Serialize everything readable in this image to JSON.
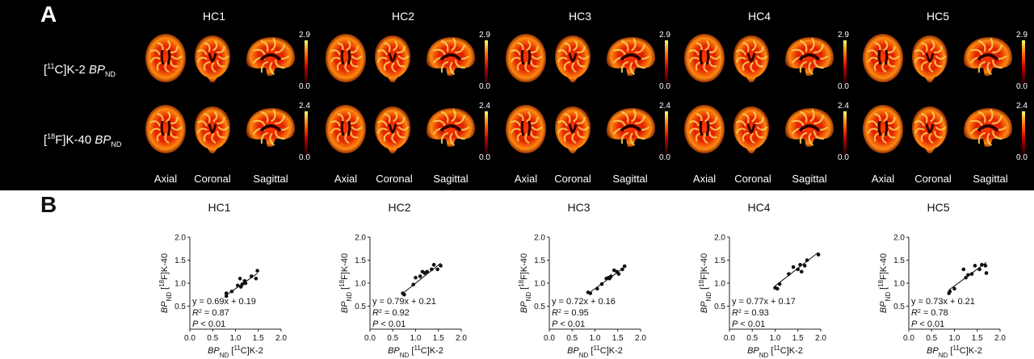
{
  "panel_a": {
    "letter": "A",
    "subjects": [
      "HC1",
      "HC2",
      "HC3",
      "HC4",
      "HC5"
    ],
    "rows": [
      {
        "tracer_sup": "11",
        "tracer_rest": "C]K-2 ",
        "bp": "BP",
        "bp_sub": "ND",
        "cmax": "2.9",
        "cmin": "0.0"
      },
      {
        "tracer_sup": "18",
        "tracer_rest": "F]K-40 ",
        "bp": "BP",
        "bp_sub": "ND",
        "cmax": "2.4",
        "cmin": "0.0"
      }
    ],
    "views": [
      "Axial",
      "Coronal",
      "Sagittal"
    ],
    "colormap": [
      "#000000",
      "#5a0000",
      "#b50000",
      "#ff3b00",
      "#ff9a1a",
      "#ffff70"
    ]
  },
  "panel_b": {
    "letter": "B",
    "xlabel": {
      "bp": "BP",
      "sub": "ND",
      "sup": "11",
      "rest": "C]K-2"
    },
    "ylabel": {
      "bp": "BP",
      "sub": "ND",
      "sup": "18",
      "rest": "F]K-40"
    }
  },
  "chart_data": [
    {
      "type": "scatter",
      "title": "HC1",
      "xlim": [
        0,
        2.0
      ],
      "ylim": [
        0,
        2.0
      ],
      "xticks": [
        "0.0",
        "0.5",
        "1.0",
        "1.5",
        "2.0"
      ],
      "yticks": [
        "0.5",
        "1.0",
        "1.5",
        "2.0"
      ],
      "x": [
        0.8,
        0.8,
        0.92,
        1.05,
        1.1,
        1.12,
        1.15,
        1.2,
        1.22,
        1.35,
        1.45,
        1.48
      ],
      "y": [
        0.72,
        0.78,
        0.82,
        0.95,
        1.1,
        0.92,
        0.98,
        1.05,
        1.0,
        1.15,
        1.1,
        1.27
      ],
      "fit": {
        "slope": 0.69,
        "intercept": 0.19
      },
      "eq": "y = 0.69x + 0.19",
      "r2": "= 0.87",
      "p": "< 0.01"
    },
    {
      "type": "scatter",
      "title": "HC2",
      "xlim": [
        0,
        2.0
      ],
      "ylim": [
        0,
        2.0
      ],
      "xticks": [
        "0.0",
        "0.5",
        "1.0",
        "1.5",
        "2.0"
      ],
      "yticks": [
        "0.5",
        "1.0",
        "1.5",
        "2.0"
      ],
      "x": [
        0.72,
        0.75,
        0.95,
        1.0,
        1.1,
        1.15,
        1.2,
        1.25,
        1.35,
        1.4,
        1.48,
        1.55
      ],
      "y": [
        0.78,
        0.75,
        0.97,
        1.12,
        1.15,
        1.25,
        1.22,
        1.25,
        1.3,
        1.4,
        1.3,
        1.38
      ],
      "fit": {
        "slope": 0.79,
        "intercept": 0.21
      },
      "eq": "y = 0.79x + 0.21",
      "r2": "= 0.92",
      "p": "< 0.01"
    },
    {
      "type": "scatter",
      "title": "HC3",
      "xlim": [
        0,
        2.0
      ],
      "ylim": [
        0,
        2.0
      ],
      "xticks": [
        "0.0",
        "0.5",
        "1.0",
        "1.5",
        "2.0"
      ],
      "yticks": [
        "0.5",
        "1.0",
        "1.5",
        "2.0"
      ],
      "x": [
        0.85,
        0.9,
        1.05,
        1.15,
        1.25,
        1.3,
        1.32,
        1.35,
        1.42,
        1.48,
        1.52,
        1.6,
        1.65
      ],
      "y": [
        0.8,
        0.78,
        0.88,
        0.98,
        1.1,
        1.12,
        1.1,
        1.15,
        1.28,
        1.25,
        1.2,
        1.3,
        1.37
      ],
      "fit": {
        "slope": 0.72,
        "intercept": 0.16
      },
      "eq": "y = 0.72x + 0.16",
      "r2": "= 0.95",
      "p": "< 0.01"
    },
    {
      "type": "scatter",
      "title": "HC4",
      "xlim": [
        0,
        2.0
      ],
      "ylim": [
        0,
        2.0
      ],
      "xticks": [
        "0.0",
        "0.5",
        "1.0",
        "1.5",
        "2.0"
      ],
      "yticks": [
        "0.5",
        "1.0",
        "1.5",
        "2.0"
      ],
      "x": [
        1.0,
        1.05,
        1.1,
        1.3,
        1.4,
        1.5,
        1.55,
        1.58,
        1.65,
        1.7,
        1.95
      ],
      "y": [
        0.9,
        0.88,
        0.98,
        1.2,
        1.35,
        1.3,
        1.4,
        1.25,
        1.38,
        1.5,
        1.62
      ],
      "fit": {
        "slope": 0.77,
        "intercept": 0.17
      },
      "eq": "y = 0.77x + 0.17",
      "r2": "= 0.93",
      "p": "< 0.01"
    },
    {
      "type": "scatter",
      "title": "HC5",
      "xlim": [
        0,
        2.0
      ],
      "ylim": [
        0,
        2.0
      ],
      "xticks": [
        "0.0",
        "0.5",
        "1.0",
        "1.5",
        "2.0"
      ],
      "yticks": [
        "0.5",
        "1.0",
        "1.5",
        "2.0"
      ],
      "x": [
        0.88,
        0.9,
        1.0,
        1.2,
        1.25,
        1.3,
        1.38,
        1.45,
        1.55,
        1.6,
        1.68,
        1.7
      ],
      "y": [
        0.78,
        0.82,
        0.88,
        1.3,
        1.12,
        1.18,
        1.2,
        1.38,
        1.3,
        1.4,
        1.38,
        1.22
      ],
      "fit": {
        "slope": 0.73,
        "intercept": 0.21
      },
      "eq": "y = 0.73x + 0.21",
      "r2": "= 0.78",
      "p": "< 0.01"
    }
  ]
}
